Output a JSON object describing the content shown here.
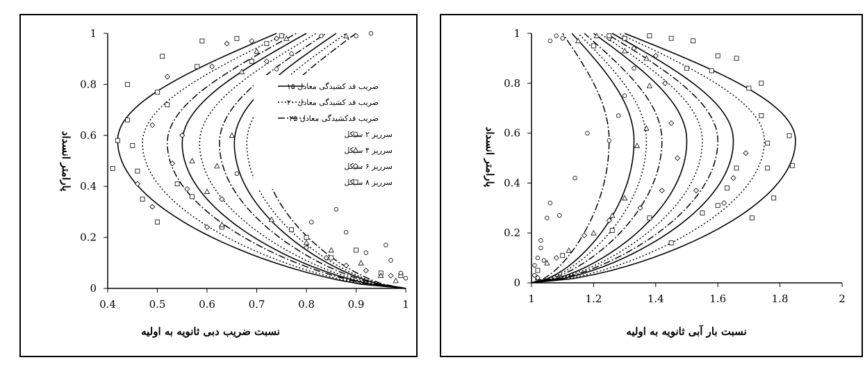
{
  "chart_data": [
    {
      "type": "line",
      "xlabel": "نسبت ضریب دبی ثانویه به اولیه",
      "ylabel": "پارامتر انسداد",
      "xlim": [
        0.4,
        1.0
      ],
      "ylim": [
        0,
        1.0
      ],
      "xticks": [
        "0.4",
        "0.5",
        "0.6",
        "0.7",
        "0.8",
        "0.9",
        "1"
      ],
      "yticks": [
        "0",
        "0.2",
        "0.4",
        "0.6",
        "0.8",
        "1"
      ],
      "legend_position": "right-middle",
      "legend": [
        {
          "label": "ضریب قد کشیدگی معادل ۱۵",
          "style": "solid"
        },
        {
          "label": "ضریب قد کشیدگی معادل ۲۰",
          "style": "dotted"
        },
        {
          "label": "ضریب قدکشیدگی معادل ۲۵",
          "style": "dashdot"
        },
        {
          "label": "سرریز ۲ سیکل",
          "marker": "circle"
        },
        {
          "label": "سرریز ۴ سیکل",
          "marker": "triangle"
        },
        {
          "label": "سرریز ۶ سیکل",
          "marker": "diamond"
        },
        {
          "label": "سرریز ۸ سیکل",
          "marker": "square"
        }
      ],
      "series": [
        {
          "style": "solid",
          "nose": [
            0.42,
            0.58
          ],
          "top_x": 0.74
        },
        {
          "style": "dotted",
          "nose": [
            0.47,
            0.57
          ],
          "top_x": 0.76
        },
        {
          "style": "dashdot",
          "nose": [
            0.52,
            0.57
          ],
          "top_x": 0.78
        },
        {
          "style": "solid",
          "nose": [
            0.55,
            0.57
          ],
          "top_x": 0.8
        },
        {
          "style": "dotted",
          "nose": [
            0.585,
            0.57
          ],
          "top_x": 0.82
        },
        {
          "style": "dashdot",
          "nose": [
            0.625,
            0.57
          ],
          "top_x": 0.84
        },
        {
          "style": "solid",
          "nose": [
            0.655,
            0.57
          ],
          "top_x": 0.86
        },
        {
          "style": "dotted",
          "nose": [
            0.68,
            0.57
          ],
          "top_x": 0.88
        },
        {
          "style": "dashdot",
          "nose": [
            0.71,
            0.57
          ],
          "top_x": 0.9
        }
      ],
      "points": [
        {
          "m": "square",
          "pts": [
            [
              0.42,
              0.58
            ],
            [
              0.41,
              0.47
            ],
            [
              0.44,
              0.66
            ],
            [
              0.44,
              0.8
            ],
            [
              0.45,
              0.56
            ],
            [
              0.46,
              0.46
            ],
            [
              0.47,
              0.35
            ],
            [
              0.5,
              0.26
            ],
            [
              0.5,
              0.77
            ],
            [
              0.51,
              0.91
            ],
            [
              0.52,
              0.72
            ],
            [
              0.54,
              0.41
            ],
            [
              0.57,
              0.36
            ],
            [
              0.58,
              0.87
            ],
            [
              0.59,
              0.97
            ],
            [
              0.63,
              0.24
            ],
            [
              0.66,
              0.98
            ],
            [
              0.69,
              0.89
            ],
            [
              0.72,
              0.96
            ],
            [
              0.75,
              0.99
            ],
            [
              0.8,
              0.2
            ],
            [
              0.85,
              0.12
            ],
            [
              0.9,
              0.15
            ],
            [
              0.95,
              0.06
            ],
            [
              0.99,
              0.05
            ],
            [
              0.77,
              0.23
            ]
          ]
        },
        {
          "m": "diamond",
          "pts": [
            [
              0.46,
              0.41
            ],
            [
              0.49,
              0.32
            ],
            [
              0.49,
              0.64
            ],
            [
              0.52,
              0.83
            ],
            [
              0.53,
              0.49
            ],
            [
              0.55,
              0.6
            ],
            [
              0.56,
              0.39
            ],
            [
              0.6,
              0.24
            ],
            [
              0.61,
              0.87
            ],
            [
              0.64,
              0.96
            ],
            [
              0.69,
              0.97
            ],
            [
              0.72,
              0.89
            ],
            [
              0.74,
              0.98
            ],
            [
              0.8,
              0.16
            ],
            [
              0.84,
              0.12
            ],
            [
              0.88,
              0.09
            ],
            [
              0.92,
              0.07
            ],
            [
              0.97,
              0.05
            ],
            [
              0.63,
              0.35
            ]
          ]
        },
        {
          "m": "triangle",
          "pts": [
            [
              0.57,
              0.5
            ],
            [
              0.6,
              0.38
            ],
            [
              0.62,
              0.48
            ],
            [
              0.63,
              0.25
            ],
            [
              0.65,
              0.6
            ],
            [
              0.67,
              0.85
            ],
            [
              0.7,
              0.93
            ],
            [
              0.73,
              0.27
            ],
            [
              0.76,
              0.98
            ],
            [
              0.8,
              0.18
            ],
            [
              0.85,
              0.15
            ],
            [
              0.88,
              0.99
            ],
            [
              0.91,
              0.1
            ],
            [
              0.95,
              0.05
            ],
            [
              0.98,
              0.03
            ]
          ]
        },
        {
          "m": "circle",
          "pts": [
            [
              0.66,
              0.45
            ],
            [
              0.7,
              0.57
            ],
            [
              0.72,
              0.73
            ],
            [
              0.74,
              0.86
            ],
            [
              0.77,
              0.92
            ],
            [
              0.81,
              0.26
            ],
            [
              0.86,
              0.31
            ],
            [
              0.88,
              0.22
            ],
            [
              0.92,
              0.14
            ],
            [
              0.96,
              0.17
            ],
            [
              0.97,
              0.11
            ],
            [
              0.99,
              0.06
            ],
            [
              1.0,
              0.04
            ],
            [
              0.9,
              0.99
            ],
            [
              0.93,
              1.0
            ],
            [
              0.83,
              0.99
            ]
          ]
        }
      ]
    },
    {
      "type": "line",
      "xlabel": "نسبت بار آبی ثانویه به اولیه",
      "ylabel": "پارامتر انسداد",
      "xlim": [
        1,
        2
      ],
      "ylim": [
        0,
        1.0
      ],
      "xticks": [
        "1",
        "1.2",
        "1.4",
        "1.6",
        "1.8",
        "2"
      ],
      "yticks": [
        "0",
        "0.2",
        "0.4",
        "0.6",
        "0.8",
        "1"
      ],
      "series": [
        {
          "style": "dashdot",
          "nose": [
            1.25,
            0.57
          ],
          "top_x": 1.1
        },
        {
          "style": "solid",
          "nose": [
            1.33,
            0.57
          ],
          "top_x": 1.13
        },
        {
          "style": "dotted",
          "nose": [
            1.37,
            0.57
          ],
          "top_x": 1.15
        },
        {
          "style": "dashdot",
          "nose": [
            1.42,
            0.57
          ],
          "top_x": 1.17
        },
        {
          "style": "solid",
          "nose": [
            1.5,
            0.57
          ],
          "top_x": 1.2
        },
        {
          "style": "dotted",
          "nose": [
            1.55,
            0.57
          ],
          "top_x": 1.22
        },
        {
          "style": "dashdot",
          "nose": [
            1.6,
            0.57
          ],
          "top_x": 1.24
        },
        {
          "style": "solid",
          "nose": [
            1.65,
            0.57
          ],
          "top_x": 1.26
        },
        {
          "style": "dotted",
          "nose": [
            1.75,
            0.57
          ],
          "top_x": 1.28
        },
        {
          "style": "solid",
          "nose": [
            1.85,
            0.57
          ],
          "top_x": 1.3
        }
      ],
      "points": [
        {
          "m": "circle",
          "pts": [
            [
              1.01,
              0.03
            ],
            [
              1.01,
              0.07
            ],
            [
              1.02,
              0.1
            ],
            [
              1.03,
              0.14
            ],
            [
              1.05,
              0.26
            ],
            [
              1.06,
              0.32
            ],
            [
              1.09,
              0.27
            ],
            [
              1.14,
              0.42
            ],
            [
              1.18,
              0.6
            ],
            [
              1.25,
              0.57
            ],
            [
              1.28,
              0.67
            ],
            [
              1.3,
              0.75
            ],
            [
              1.33,
              0.86
            ],
            [
              1.06,
              0.97
            ],
            [
              1.08,
              0.99
            ],
            [
              1.1,
              0.98
            ],
            [
              1.03,
              0.17
            ],
            [
              1.02,
              0.05
            ],
            [
              1.04,
              0.09
            ]
          ]
        },
        {
          "m": "triangle",
          "pts": [
            [
              1.02,
              0.02
            ],
            [
              1.05,
              0.08
            ],
            [
              1.12,
              0.13
            ],
            [
              1.2,
              0.2
            ],
            [
              1.26,
              0.27
            ],
            [
              1.3,
              0.34
            ],
            [
              1.34,
              0.55
            ],
            [
              1.37,
              0.62
            ],
            [
              1.38,
              0.79
            ],
            [
              1.37,
              0.9
            ],
            [
              1.3,
              0.93
            ],
            [
              1.21,
              0.99
            ],
            [
              1.15,
              0.97
            ]
          ]
        },
        {
          "m": "diamond",
          "pts": [
            [
              1.02,
              0.02
            ],
            [
              1.08,
              0.1
            ],
            [
              1.17,
              0.19
            ],
            [
              1.25,
              0.25
            ],
            [
              1.35,
              0.3
            ],
            [
              1.42,
              0.37
            ],
            [
              1.47,
              0.5
            ],
            [
              1.45,
              0.64
            ],
            [
              1.43,
              0.8
            ],
            [
              1.4,
              0.91
            ],
            [
              1.33,
              0.94
            ],
            [
              1.25,
              0.98
            ],
            [
              1.53,
              0.37
            ],
            [
              1.62,
              0.32
            ],
            [
              1.65,
              0.42
            ],
            [
              1.69,
              0.52
            ]
          ]
        },
        {
          "m": "square",
          "pts": [
            [
              1.02,
              0.05
            ],
            [
              1.1,
              0.11
            ],
            [
              1.26,
              0.21
            ],
            [
              1.38,
              0.26
            ],
            [
              1.45,
              0.16
            ],
            [
              1.55,
              0.28
            ],
            [
              1.6,
              0.31
            ],
            [
              1.63,
              0.38
            ],
            [
              1.66,
              0.46
            ],
            [
              1.71,
              0.26
            ],
            [
              1.76,
              0.46
            ],
            [
              1.78,
              0.34
            ],
            [
              1.83,
              0.59
            ],
            [
              1.84,
              0.47
            ],
            [
              1.76,
              0.56
            ],
            [
              1.74,
              0.67
            ],
            [
              1.7,
              0.78
            ],
            [
              1.66,
              0.9
            ],
            [
              1.6,
              0.91
            ],
            [
              1.52,
              0.97
            ],
            [
              1.45,
              0.98
            ],
            [
              1.38,
              0.99
            ],
            [
              1.3,
              0.98
            ],
            [
              1.25,
              0.99
            ],
            [
              1.2,
              0.95
            ],
            [
              1.5,
              0.86
            ],
            [
              1.58,
              0.85
            ],
            [
              1.74,
              0.8
            ]
          ]
        }
      ]
    }
  ]
}
